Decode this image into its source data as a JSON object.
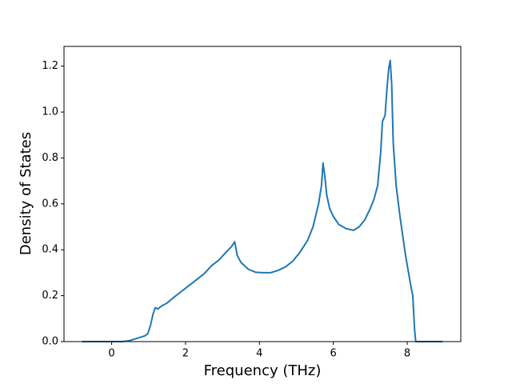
{
  "chart_data": {
    "type": "line",
    "xlabel": "Frequency (THz)",
    "ylabel": "Density of States",
    "x": [
      -0.8,
      0.3,
      0.5,
      0.7,
      0.9,
      0.98,
      1.05,
      1.12,
      1.18,
      1.25,
      1.35,
      1.5,
      1.7,
      1.9,
      2.1,
      2.3,
      2.5,
      2.7,
      2.9,
      3.1,
      3.25,
      3.33,
      3.4,
      3.5,
      3.7,
      3.9,
      4.1,
      4.3,
      4.5,
      4.7,
      4.9,
      5.1,
      5.3,
      5.45,
      5.6,
      5.68,
      5.72,
      5.77,
      5.82,
      5.9,
      6.0,
      6.15,
      6.35,
      6.55,
      6.7,
      6.85,
      7.0,
      7.1,
      7.2,
      7.28,
      7.33,
      7.4,
      7.45,
      7.5,
      7.54,
      7.58,
      7.62,
      7.7,
      7.8,
      7.95,
      8.1,
      8.15,
      8.2,
      8.23,
      8.96
    ],
    "series": [
      {
        "color": "#1f77b4",
        "values": [
          0,
          0,
          0.005,
          0.015,
          0.025,
          0.035,
          0.07,
          0.12,
          0.148,
          0.142,
          0.155,
          0.168,
          0.195,
          0.22,
          0.245,
          0.27,
          0.295,
          0.33,
          0.355,
          0.39,
          0.415,
          0.435,
          0.375,
          0.345,
          0.315,
          0.302,
          0.3,
          0.3,
          0.31,
          0.325,
          0.35,
          0.39,
          0.44,
          0.5,
          0.6,
          0.68,
          0.778,
          0.72,
          0.64,
          0.58,
          0.545,
          0.51,
          0.492,
          0.485,
          0.5,
          0.53,
          0.58,
          0.62,
          0.68,
          0.82,
          0.96,
          0.985,
          1.1,
          1.19,
          1.225,
          1.12,
          0.87,
          0.68,
          0.55,
          0.38,
          0.24,
          0.2,
          0.05,
          0,
          0
        ]
      }
    ],
    "xlim": [
      -1.29,
      9.45
    ],
    "xticks": [
      0,
      2,
      4,
      6,
      8
    ],
    "ylim": [
      0,
      1.286
    ],
    "yticks": [
      {
        "value": 0,
        "label": "0.0"
      },
      0.2,
      0.4,
      0.6,
      0.8,
      {
        "value": 1,
        "label": "1.0"
      },
      1.2
    ]
  }
}
